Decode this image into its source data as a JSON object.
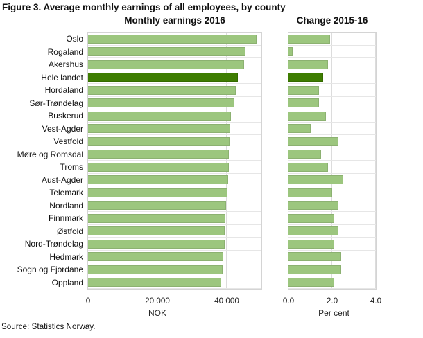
{
  "figure": {
    "title": "Figure 3. Average monthly earnings of all employees, by county",
    "source": "Source: Statistics Norway."
  },
  "colors": {
    "bar": "#9cc67e",
    "bar_highlight": "#3e7d01",
    "gridline": "#dcdcdc",
    "plot_border": "#d4d4d4",
    "row_separator": "#e6e6e6"
  },
  "chart_data": [
    {
      "type": "bar",
      "orientation": "horizontal",
      "title": "Monthly earnings 2016",
      "xlabel": "NOK",
      "xlim": [
        0,
        50000
      ],
      "xticks": [
        0,
        20000,
        40000
      ],
      "xtick_labels": [
        "0",
        "20 000",
        "40 000"
      ],
      "grid": "vertical-at-ticks-and-row-separators",
      "legend": "none",
      "highlight_category": "Hele landet",
      "highlight_index": 3,
      "categories": [
        "Oslo",
        "Rogaland",
        "Akershus",
        "Hele landet",
        "Hordaland",
        "Sør-Trøndelag",
        "Buskerud",
        "Vest-Agder",
        "Vestfold",
        "Møre og Romsdal",
        "Troms",
        "Aust-Agder",
        "Telemark",
        "Nordland",
        "Finnmark",
        "Østfold",
        "Nord-Trøndelag",
        "Hedmark",
        "Sogn og Fjordane",
        "Oppland"
      ],
      "values": [
        48500,
        45300,
        44900,
        43200,
        42600,
        42100,
        41100,
        41000,
        40800,
        40600,
        40600,
        40400,
        40100,
        39700,
        39600,
        39400,
        39300,
        39000,
        38800,
        38300
      ]
    },
    {
      "type": "bar",
      "orientation": "horizontal",
      "title": "Change 2015-16",
      "xlabel": "Per cent",
      "xlim": [
        0,
        4.0
      ],
      "xticks": [
        0.0,
        2.0,
        4.0
      ],
      "xtick_labels": [
        "0.0",
        "2.0",
        "4.0"
      ],
      "grid": "vertical-at-ticks-and-row-separators",
      "legend": "none",
      "highlight_category": "Hele landet",
      "highlight_index": 3,
      "categories": [
        "Oslo",
        "Rogaland",
        "Akershus",
        "Hele landet",
        "Hordaland",
        "Sør-Trøndelag",
        "Buskerud",
        "Vest-Agder",
        "Vestfold",
        "Møre og Romsdal",
        "Troms",
        "Aust-Agder",
        "Telemark",
        "Nordland",
        "Finnmark",
        "Østfold",
        "Nord-Trøndelag",
        "Hedmark",
        "Sogn og Fjordane",
        "Oppland"
      ],
      "values": [
        1.9,
        0.2,
        1.8,
        1.6,
        1.4,
        1.4,
        1.7,
        1.0,
        2.3,
        1.5,
        1.8,
        2.5,
        2.0,
        2.3,
        2.1,
        2.3,
        2.1,
        2.4,
        2.4,
        2.1
      ]
    }
  ]
}
